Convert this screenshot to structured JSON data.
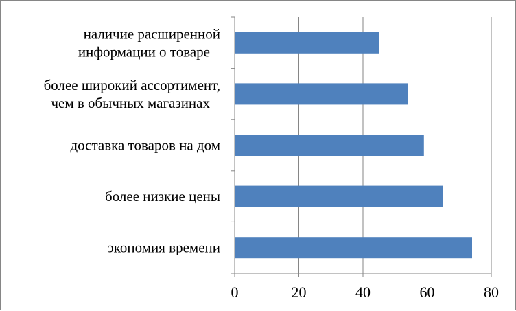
{
  "chart_data": {
    "type": "bar",
    "orientation": "horizontal",
    "categories": [
      [
        "экономия времени"
      ],
      [
        "более низкие цены"
      ],
      [
        "доставка товаров на дом"
      ],
      [
        "более широкий ассортимент,",
        "чем в обычных магазинах"
      ],
      [
        "наличие расширенной",
        "информации о товаре"
      ]
    ],
    "values": [
      74,
      65,
      59,
      54,
      45
    ],
    "xlim": [
      0,
      80
    ],
    "xticks": [
      0,
      20,
      40,
      60,
      80
    ],
    "grid": "vertical",
    "legend": "none",
    "title": "",
    "xlabel": "",
    "ylabel": "",
    "colors": {
      "bar": "#4F81BD",
      "grid": "#868686",
      "axis": "#868686",
      "border": "#868686"
    }
  }
}
